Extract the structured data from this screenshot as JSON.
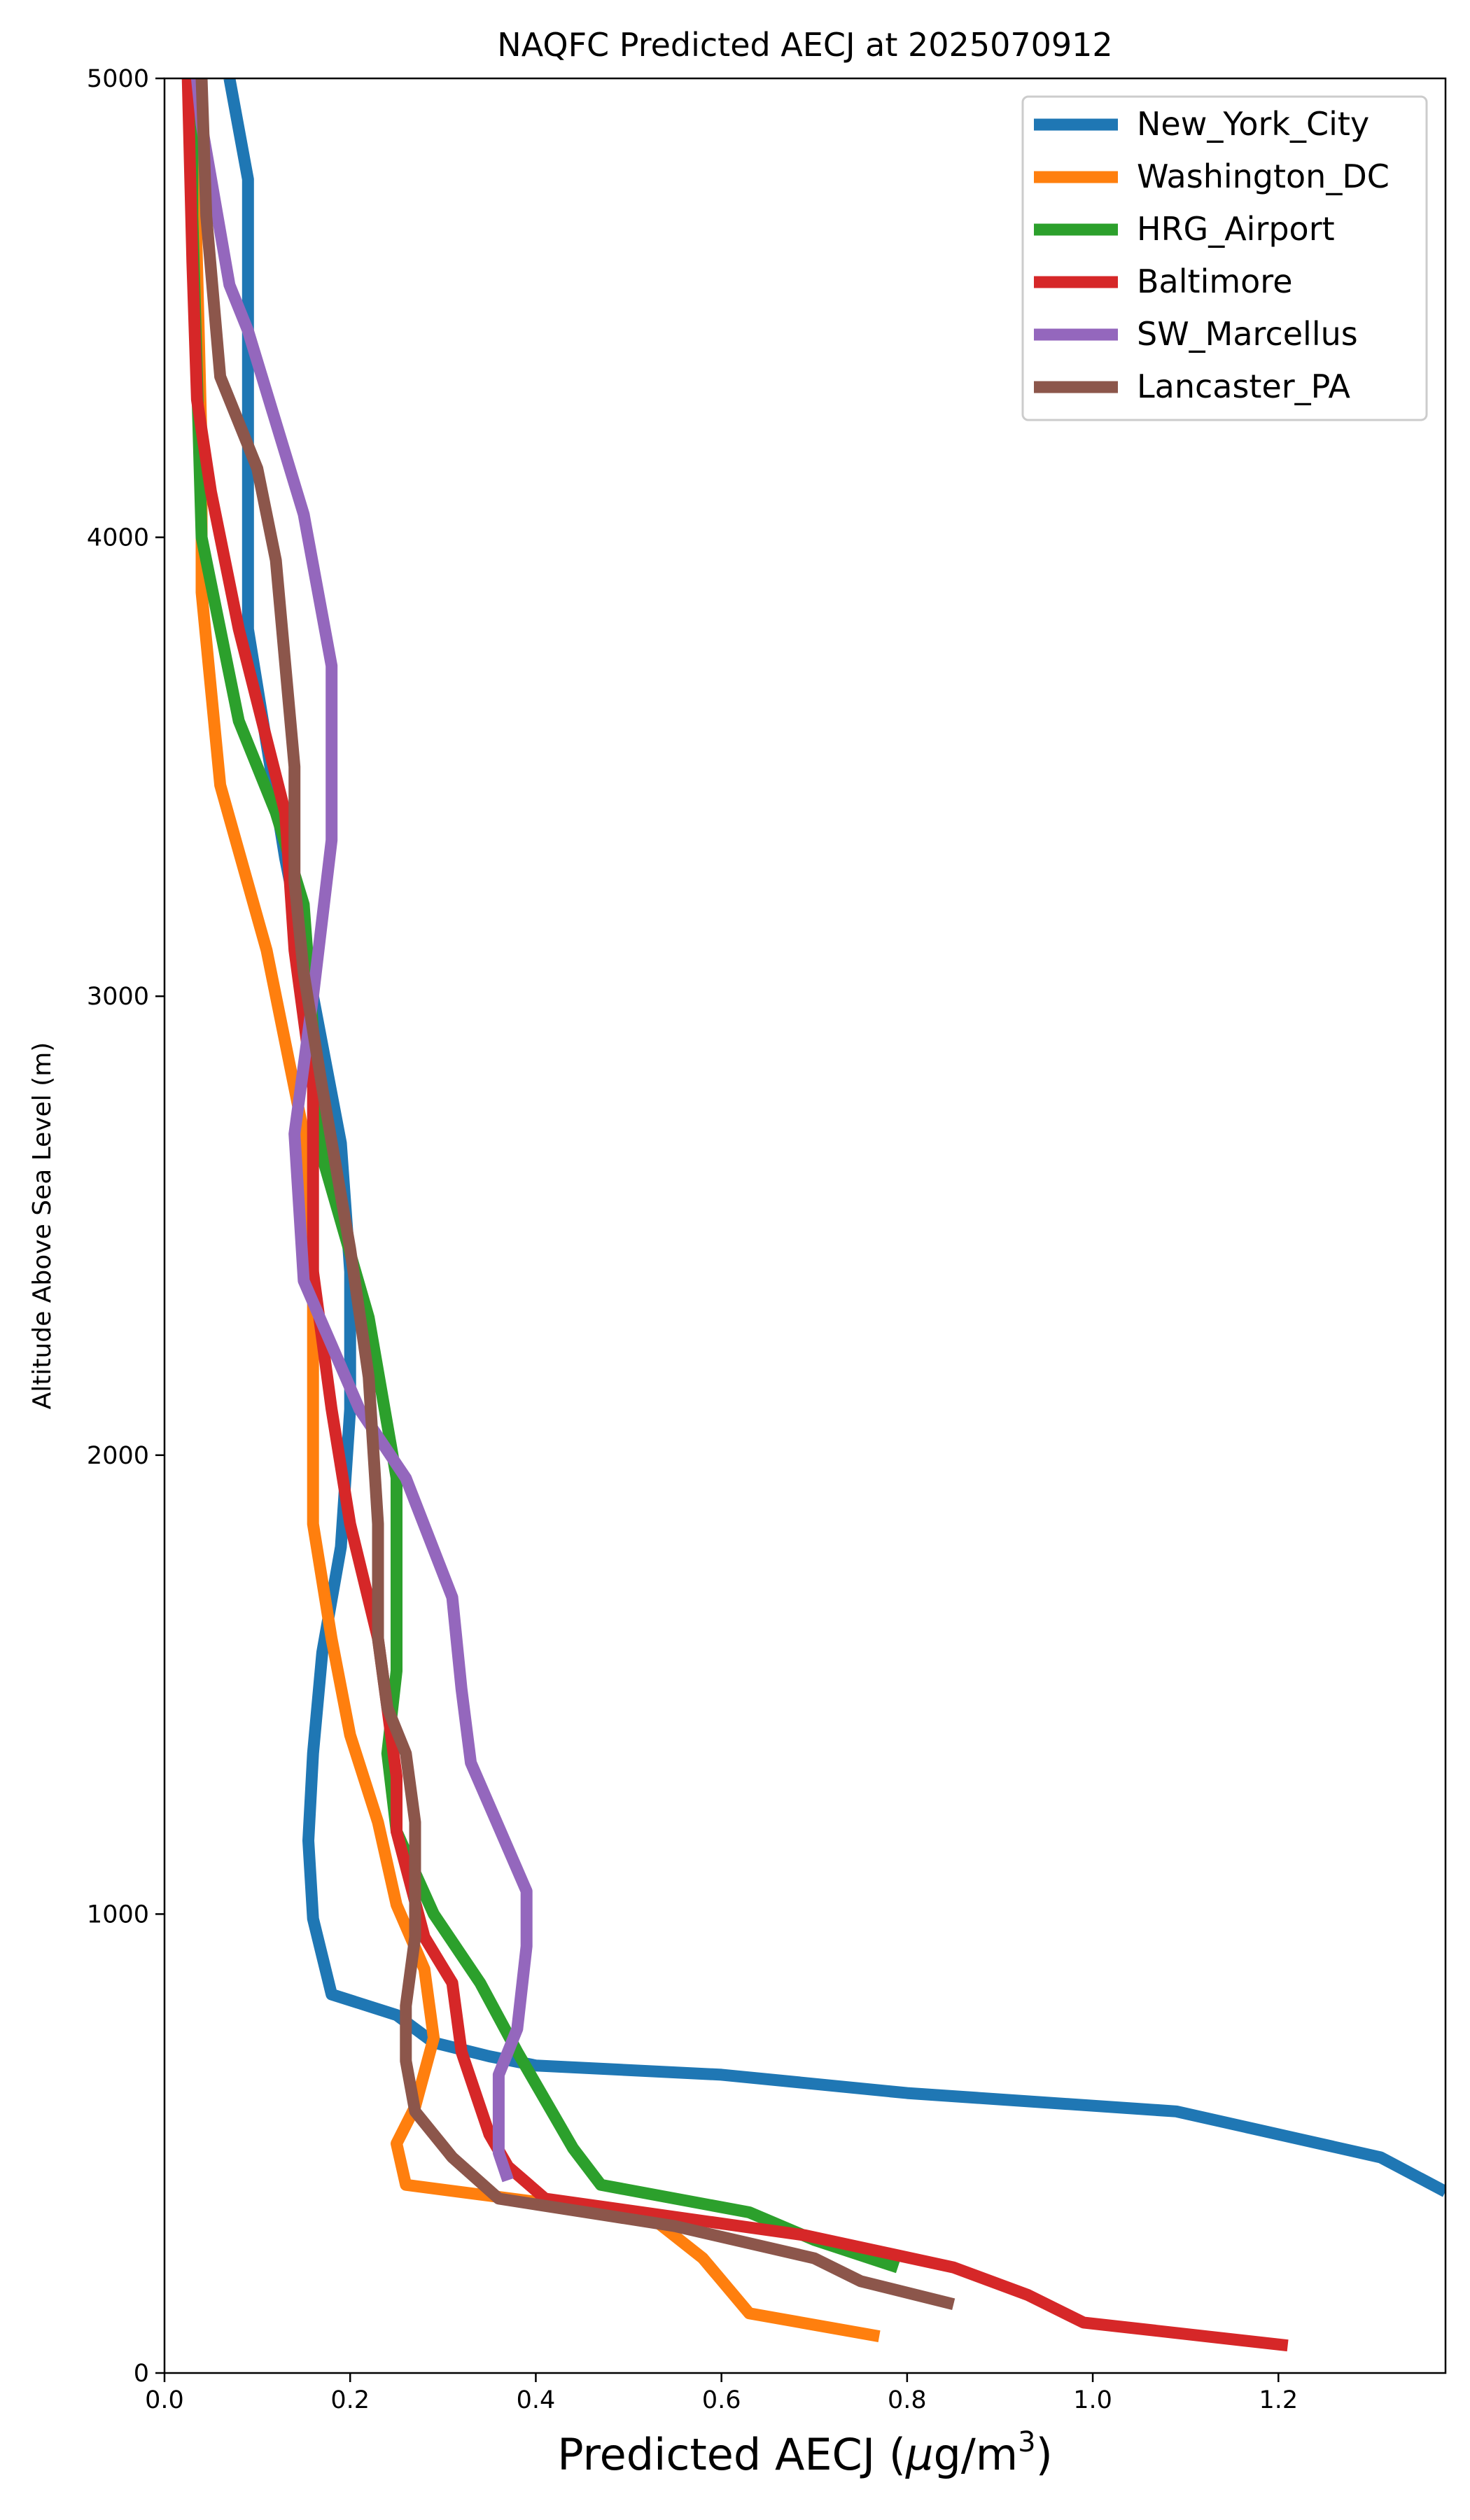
{
  "chart_data": {
    "type": "line",
    "title": "NAQFC Predicted AECJ at 2025070912",
    "xlabel": "Predicted AECJ (µg/m³)",
    "xlabel_main": "Predicted AECJ (",
    "xlabel_mu": "µ",
    "xlabel_unit": "g/m",
    "xlabel_sup": "3",
    "xlabel_close": ")",
    "ylabel": "Altitude Above Sea Level (m)",
    "xlim": [
      0,
      1.38
    ],
    "ylim": [
      0,
      5000
    ],
    "xticks": [
      0.0,
      0.2,
      0.4,
      0.6,
      0.8,
      1.0,
      1.2
    ],
    "xtick_labels": [
      "0.0",
      "0.2",
      "0.4",
      "0.6",
      "0.8",
      "1.0",
      "1.2"
    ],
    "yticks": [
      0,
      1000,
      2000,
      3000,
      4000,
      5000
    ],
    "ytick_labels": [
      "0",
      "1000",
      "2000",
      "3000",
      "4000",
      "5000"
    ],
    "grid": false,
    "legend_position": "top-right",
    "series": [
      {
        "name": "New_York_City",
        "color": "#1f77b4",
        "points": [
          [
            1.38,
            395
          ],
          [
            1.31,
            470
          ],
          [
            1.09,
            570
          ],
          [
            0.8,
            610
          ],
          [
            0.6,
            650
          ],
          [
            0.4,
            670
          ],
          [
            0.35,
            690
          ],
          [
            0.29,
            720
          ],
          [
            0.25,
            780
          ],
          [
            0.18,
            825
          ],
          [
            0.16,
            990
          ],
          [
            0.155,
            1160
          ],
          [
            0.16,
            1350
          ],
          [
            0.17,
            1570
          ],
          [
            0.19,
            1800
          ],
          [
            0.2,
            2100
          ],
          [
            0.2,
            2400
          ],
          [
            0.19,
            2680
          ],
          [
            0.16,
            3000
          ],
          [
            0.13,
            3300
          ],
          [
            0.09,
            3800
          ],
          [
            0.09,
            4780
          ],
          [
            0.07,
            5000
          ]
        ]
      },
      {
        "name": "Washington_DC",
        "color": "#ff7f0e",
        "points": [
          [
            0.77,
            80
          ],
          [
            0.63,
            130
          ],
          [
            0.58,
            250
          ],
          [
            0.53,
            330
          ],
          [
            0.45,
            360
          ],
          [
            0.26,
            410
          ],
          [
            0.25,
            500
          ],
          [
            0.27,
            580
          ],
          [
            0.29,
            730
          ],
          [
            0.28,
            880
          ],
          [
            0.25,
            1020
          ],
          [
            0.23,
            1200
          ],
          [
            0.2,
            1390
          ],
          [
            0.18,
            1600
          ],
          [
            0.16,
            1850
          ],
          [
            0.16,
            2100
          ],
          [
            0.16,
            2400
          ],
          [
            0.15,
            2700
          ],
          [
            0.11,
            3100
          ],
          [
            0.06,
            3460
          ],
          [
            0.04,
            3880
          ],
          [
            0.04,
            4200
          ],
          [
            0.035,
            4600
          ],
          [
            0.03,
            5000
          ]
        ]
      },
      {
        "name": "HRG_Airport",
        "color": "#2ca02c",
        "points": [
          [
            0.79,
            230
          ],
          [
            0.7,
            290
          ],
          [
            0.63,
            350
          ],
          [
            0.47,
            410
          ],
          [
            0.44,
            490
          ],
          [
            0.42,
            560
          ],
          [
            0.38,
            700
          ],
          [
            0.34,
            850
          ],
          [
            0.29,
            1000
          ],
          [
            0.25,
            1180
          ],
          [
            0.24,
            1350
          ],
          [
            0.25,
            1530
          ],
          [
            0.25,
            1950
          ],
          [
            0.22,
            2300
          ],
          [
            0.17,
            2650
          ],
          [
            0.15,
            3200
          ],
          [
            0.12,
            3400
          ],
          [
            0.08,
            3600
          ],
          [
            0.04,
            4000
          ],
          [
            0.035,
            4350
          ],
          [
            0.03,
            4700
          ],
          [
            0.03,
            5000
          ]
        ]
      },
      {
        "name": "Baltimore",
        "color": "#d62728",
        "points": [
          [
            1.21,
            60
          ],
          [
            0.99,
            110
          ],
          [
            0.93,
            170
          ],
          [
            0.85,
            230
          ],
          [
            0.69,
            300
          ],
          [
            0.41,
            380
          ],
          [
            0.37,
            450
          ],
          [
            0.35,
            520
          ],
          [
            0.32,
            700
          ],
          [
            0.31,
            850
          ],
          [
            0.28,
            950
          ],
          [
            0.25,
            1180
          ],
          [
            0.25,
            1300
          ],
          [
            0.23,
            1600
          ],
          [
            0.2,
            1850
          ],
          [
            0.18,
            2100
          ],
          [
            0.16,
            2400
          ],
          [
            0.16,
            2800
          ],
          [
            0.14,
            3100
          ],
          [
            0.13,
            3400
          ],
          [
            0.08,
            3800
          ],
          [
            0.05,
            4100
          ],
          [
            0.035,
            4300
          ],
          [
            0.03,
            4600
          ],
          [
            0.025,
            5000
          ]
        ]
      },
      {
        "name": "SW_Marcellus",
        "color": "#9467bd",
        "points": [
          [
            0.37,
            420
          ],
          [
            0.36,
            480
          ],
          [
            0.36,
            570
          ],
          [
            0.36,
            650
          ],
          [
            0.38,
            750
          ],
          [
            0.39,
            930
          ],
          [
            0.39,
            1050
          ],
          [
            0.36,
            1190
          ],
          [
            0.33,
            1330
          ],
          [
            0.32,
            1490
          ],
          [
            0.31,
            1690
          ],
          [
            0.26,
            1950
          ],
          [
            0.21,
            2100
          ],
          [
            0.15,
            2380
          ],
          [
            0.14,
            2700
          ],
          [
            0.16,
            3000
          ],
          [
            0.18,
            3340
          ],
          [
            0.18,
            3720
          ],
          [
            0.15,
            4050
          ],
          [
            0.09,
            4450
          ],
          [
            0.07,
            4550
          ],
          [
            0.04,
            4900
          ],
          [
            0.035,
            5000
          ]
        ]
      },
      {
        "name": "Lancaster_PA",
        "color": "#8c564b",
        "points": [
          [
            0.85,
            150
          ],
          [
            0.75,
            200
          ],
          [
            0.7,
            250
          ],
          [
            0.55,
            320
          ],
          [
            0.36,
            380
          ],
          [
            0.31,
            470
          ],
          [
            0.27,
            570
          ],
          [
            0.26,
            680
          ],
          [
            0.26,
            800
          ],
          [
            0.27,
            950
          ],
          [
            0.27,
            1200
          ],
          [
            0.26,
            1350
          ],
          [
            0.24,
            1450
          ],
          [
            0.23,
            1600
          ],
          [
            0.23,
            1850
          ],
          [
            0.22,
            2170
          ],
          [
            0.2,
            2450
          ],
          [
            0.17,
            2800
          ],
          [
            0.15,
            3050
          ],
          [
            0.14,
            3250
          ],
          [
            0.14,
            3500
          ],
          [
            0.12,
            3950
          ],
          [
            0.1,
            4150
          ],
          [
            0.06,
            4350
          ],
          [
            0.045,
            4700
          ],
          [
            0.04,
            5000
          ]
        ]
      }
    ]
  }
}
